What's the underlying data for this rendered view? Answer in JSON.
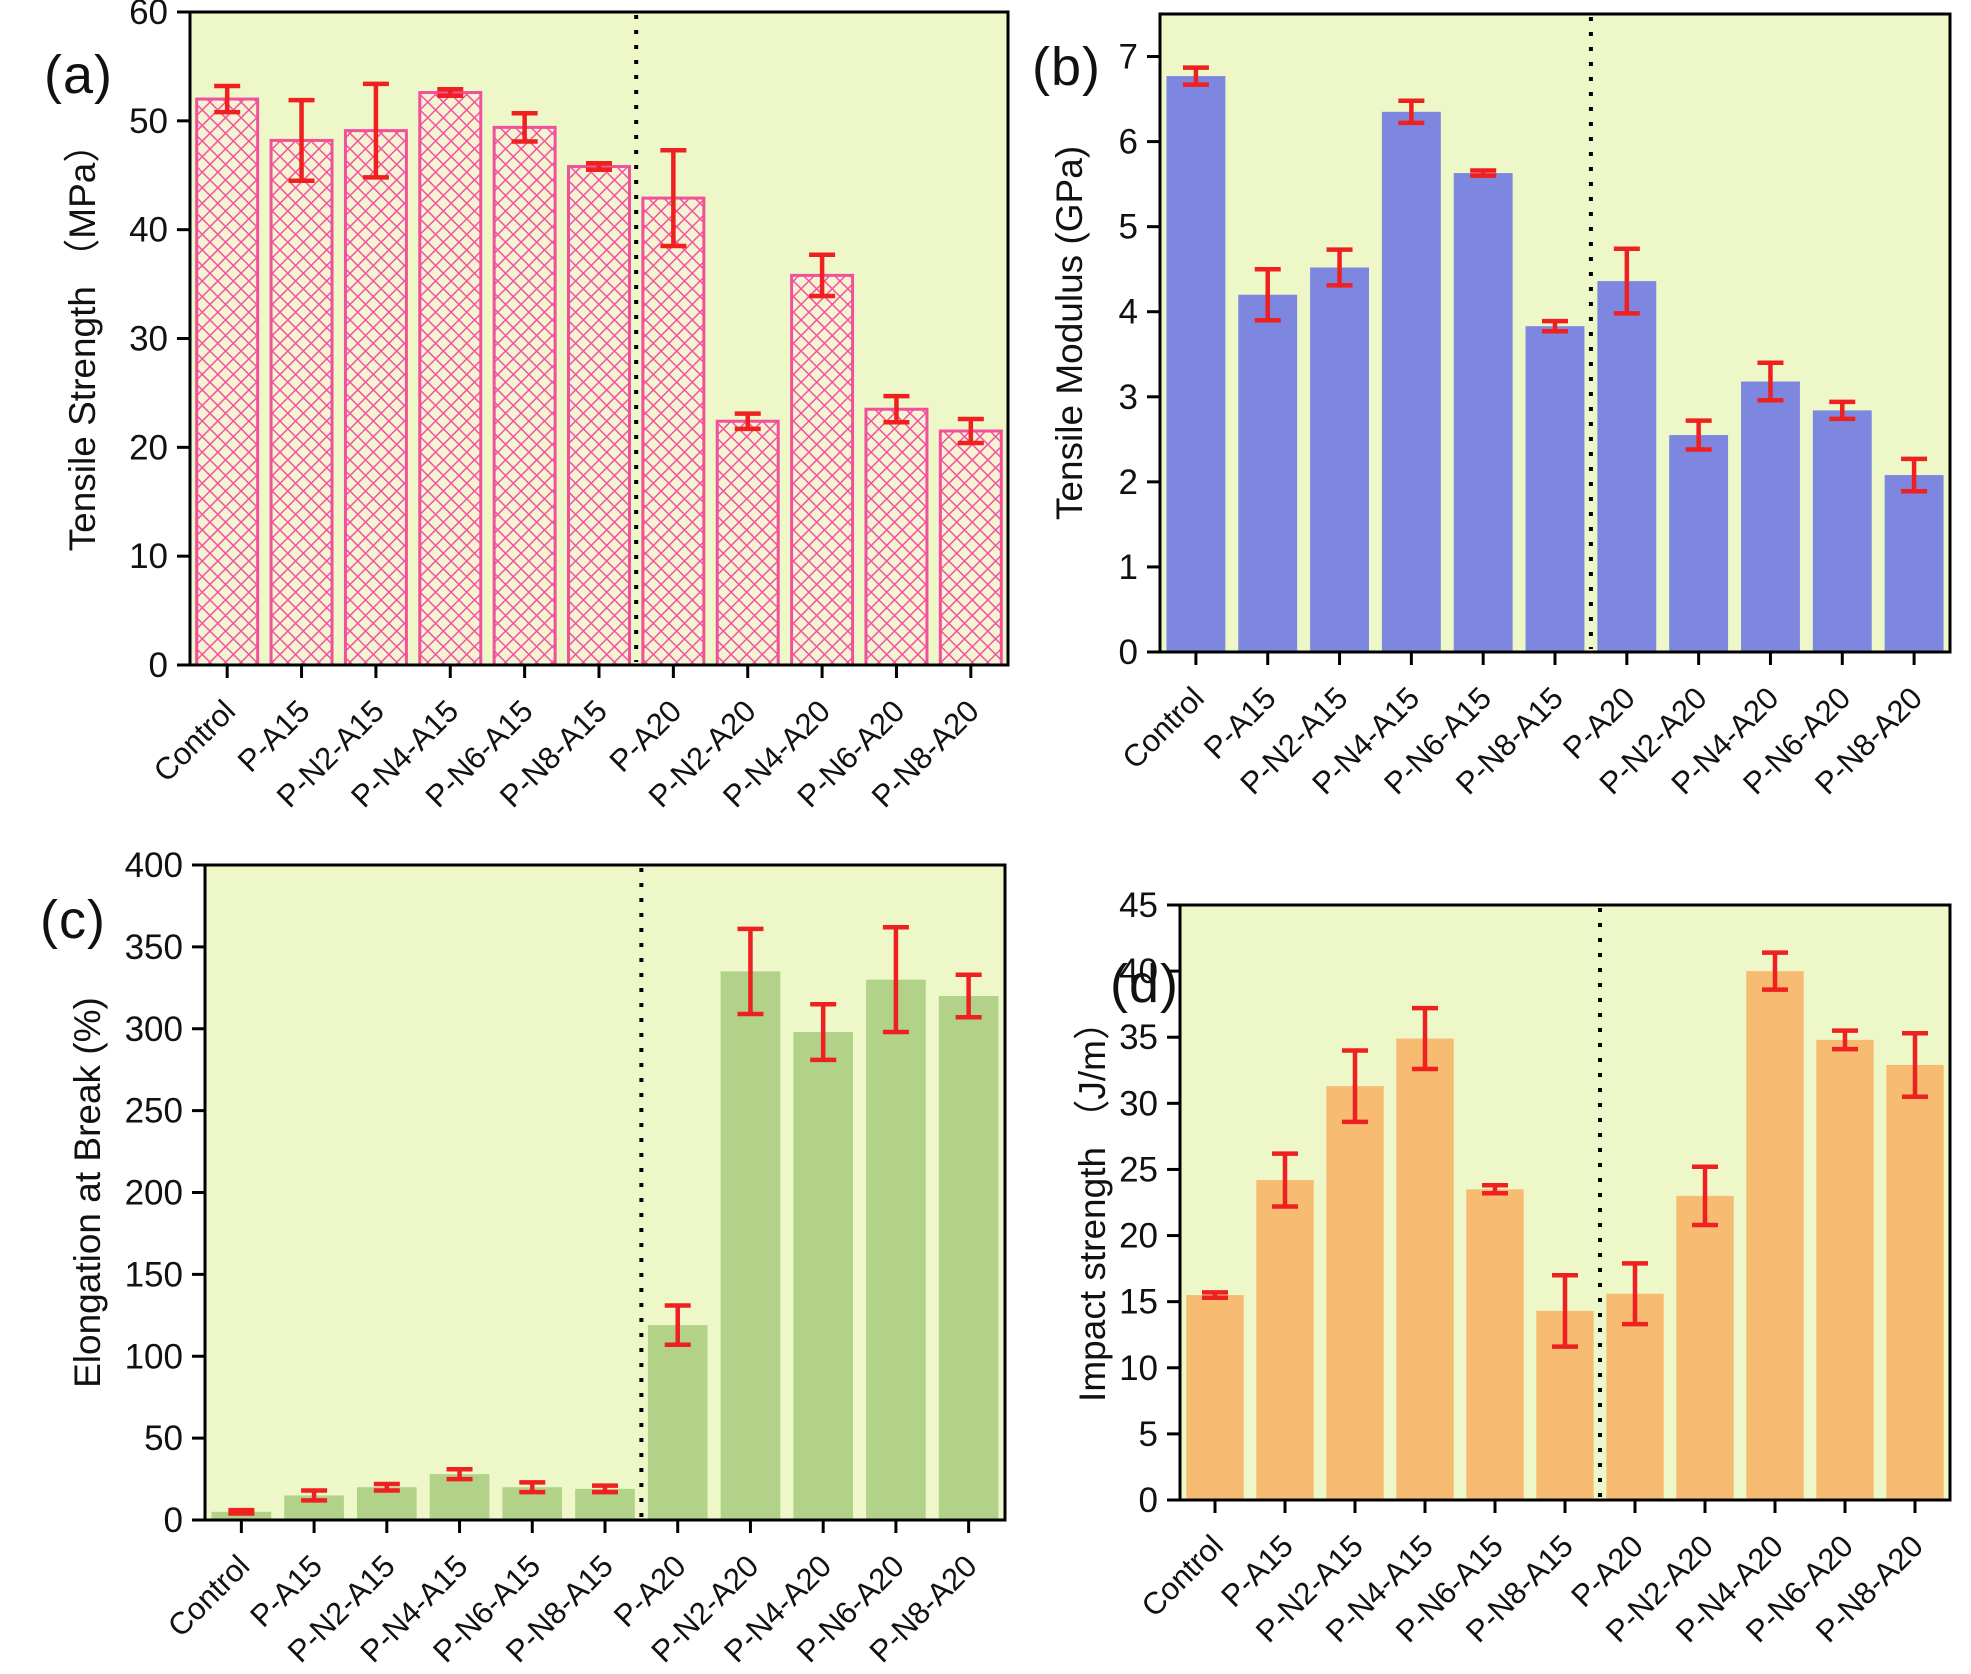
{
  "figure": {
    "panel_letters": [
      "(a)",
      "(b)",
      "(c)",
      "(d)"
    ]
  },
  "chart_data": [
    {
      "type": "bar",
      "panel_label": "(a)",
      "ylabel": "Tensile Strength （MPa）",
      "xlabel": "",
      "categories": [
        "Control",
        "P-A15",
        "P-N2-A15",
        "P-N4-A15",
        "P-N6-A15",
        "P-N8-A15",
        "P-A20",
        "P-N2-A20",
        "P-N4-A20",
        "P-N6-A20",
        "P-N8-A20"
      ],
      "values": [
        52.0,
        48.2,
        49.1,
        52.6,
        49.4,
        45.8,
        42.9,
        22.4,
        35.8,
        23.5,
        21.5
      ],
      "errors": [
        1.2,
        3.7,
        4.3,
        0.3,
        1.3,
        0.3,
        4.4,
        0.7,
        1.9,
        1.2,
        1.1
      ],
      "ylim": [
        0,
        60
      ],
      "yticks": [
        0,
        10,
        20,
        30,
        40,
        50,
        60
      ],
      "divider_after_index": 5,
      "bar_style": "crosshatch",
      "grid": false,
      "legend": "none",
      "colors": {
        "bar_edge": "#f0509c",
        "hatch_line": "#f5529f",
        "hatch_bg": "#f4f3d2",
        "error": "#ee2020",
        "plot_bg": "#edf7c8",
        "axis": "#000000",
        "divider": "#000000"
      }
    },
    {
      "type": "bar",
      "panel_label": "(b)",
      "ylabel": "Tensile Modulus (GPa)",
      "xlabel": "",
      "categories": [
        "Control",
        "P-A15",
        "P-N2-A15",
        "P-N4-A15",
        "P-N6-A15",
        "P-N8-A15",
        "P-A20",
        "P-N2-A20",
        "P-N4-A20",
        "P-N6-A20",
        "P-N8-A20"
      ],
      "values": [
        6.77,
        4.2,
        4.52,
        6.35,
        5.63,
        3.83,
        4.36,
        2.55,
        3.18,
        2.84,
        2.08
      ],
      "errors": [
        0.1,
        0.3,
        0.21,
        0.13,
        0.03,
        0.06,
        0.38,
        0.17,
        0.22,
        0.1,
        0.19
      ],
      "ylim": [
        0,
        7.5
      ],
      "yticks": [
        0,
        1,
        2,
        3,
        4,
        5,
        6,
        7
      ],
      "divider_after_index": 5,
      "bar_style": "solid",
      "grid": false,
      "legend": "none",
      "colors": {
        "bar": "#7d87e0",
        "error": "#ee2020",
        "plot_bg": "#edf7c8",
        "axis": "#000000",
        "divider": "#000000"
      }
    },
    {
      "type": "bar",
      "panel_label": "(c)",
      "ylabel": "Elongation at Break (%)",
      "xlabel": "",
      "categories": [
        "Control",
        "P-A15",
        "P-N2-A15",
        "P-N4-A15",
        "P-N6-A15",
        "P-N8-A15",
        "P-A20",
        "P-N2-A20",
        "P-N4-A20",
        "P-N6-A20",
        "P-N8-A20"
      ],
      "values": [
        5,
        15,
        20,
        28,
        20,
        19,
        119,
        335,
        298,
        330,
        320
      ],
      "errors": [
        1,
        3,
        2,
        3,
        3,
        2,
        12,
        26,
        17,
        32,
        13
      ],
      "ylim": [
        0,
        400
      ],
      "yticks": [
        0,
        50,
        100,
        150,
        200,
        250,
        300,
        350,
        400
      ],
      "divider_after_index": 5,
      "bar_style": "solid",
      "grid": false,
      "legend": "none",
      "colors": {
        "bar": "#b1d288",
        "error": "#ee2020",
        "plot_bg": "#edf7c8",
        "axis": "#000000",
        "divider": "#000000"
      }
    },
    {
      "type": "bar",
      "panel_label": "(d)",
      "ylabel": "Impact strength （J/m）",
      "xlabel": "",
      "categories": [
        "Control",
        "P-A15",
        "P-N2-A15",
        "P-N4-A15",
        "P-N6-A15",
        "P-N8-A15",
        "P-A20",
        "P-N2-A20",
        "P-N4-A20",
        "P-N6-A20",
        "P-N8-A20"
      ],
      "values": [
        15.5,
        24.2,
        31.3,
        34.9,
        23.5,
        14.3,
        15.6,
        23.0,
        40.0,
        34.8,
        32.9
      ],
      "errors": [
        0.2,
        2.0,
        2.7,
        2.3,
        0.3,
        2.7,
        2.3,
        2.2,
        1.4,
        0.7,
        2.4
      ],
      "ylim": [
        0,
        45
      ],
      "yticks": [
        0,
        5,
        10,
        15,
        20,
        25,
        30,
        35,
        40,
        45
      ],
      "divider_after_index": 5,
      "bar_style": "solid",
      "grid": false,
      "legend": "none",
      "colors": {
        "bar": "#f8bb72",
        "error": "#ee2020",
        "plot_bg": "#edf7c8",
        "axis": "#000000",
        "divider": "#000000"
      }
    }
  ]
}
